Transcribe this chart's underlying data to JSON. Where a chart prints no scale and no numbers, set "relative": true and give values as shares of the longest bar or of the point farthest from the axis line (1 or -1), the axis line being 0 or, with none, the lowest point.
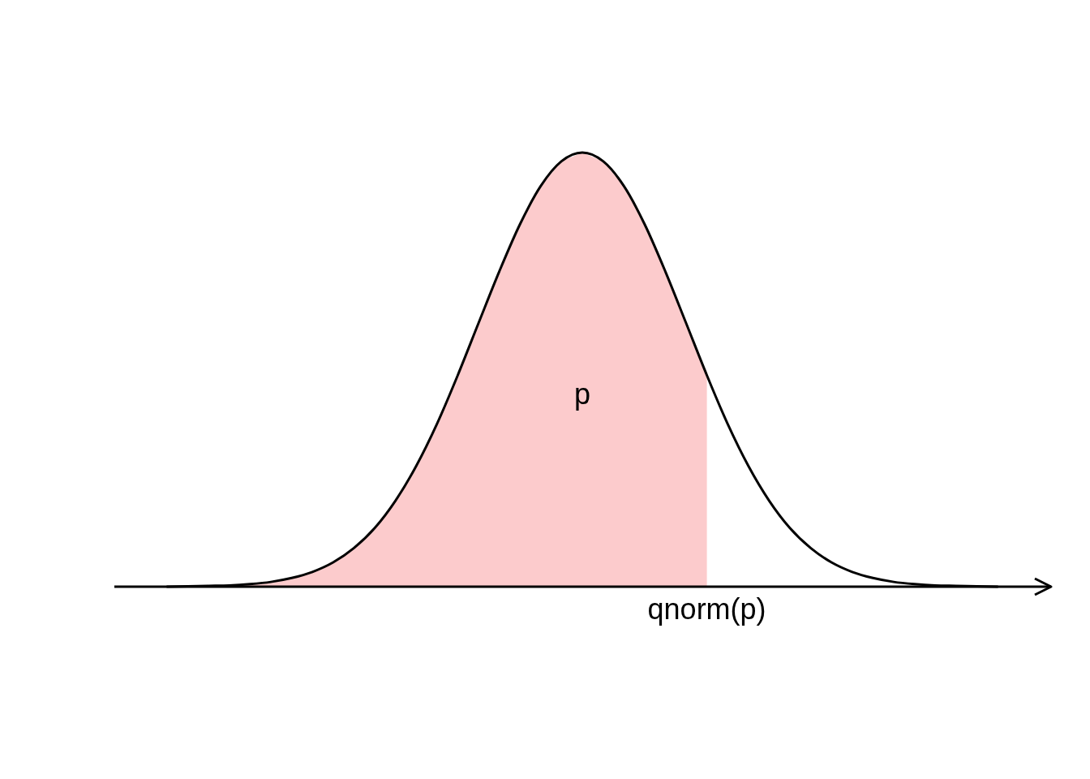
{
  "chart_data": {
    "type": "line",
    "relative": true,
    "categories": [
      null,
      null,
      null,
      null,
      null,
      null,
      null,
      null,
      null,
      null,
      null,
      null,
      null,
      null,
      null,
      null,
      null,
      null,
      null,
      null,
      null,
      null,
      null,
      null,
      null,
      null,
      null,
      null,
      null,
      null,
      null,
      null,
      null,
      null,
      null,
      null,
      null,
      null,
      null,
      null,
      null
    ],
    "series": [
      {
        "type": "area",
        "color": "#fccbcc",
        "values": [
          0.0,
          0.001,
          0.002,
          0.003,
          0.006,
          0.011,
          0.02,
          0.034,
          0.056,
          0.089,
          0.135,
          0.198,
          0.278,
          0.375,
          0.487,
          0.607,
          0.726,
          0.835,
          0.923,
          0.98,
          1.0,
          0.98,
          0.923,
          0.835,
          0.726,
          0.607,
          0.487,
          null,
          null,
          null,
          null,
          null,
          null,
          null,
          null,
          null,
          null,
          null,
          null,
          null,
          null
        ]
      },
      {
        "color": "#000000",
        "values": [
          0.0,
          0.001,
          0.002,
          0.003,
          0.006,
          0.011,
          0.02,
          0.034,
          0.056,
          0.089,
          0.135,
          0.198,
          0.278,
          0.375,
          0.487,
          0.607,
          0.726,
          0.835,
          0.923,
          0.98,
          1.0,
          0.98,
          0.923,
          0.835,
          0.726,
          0.607,
          0.487,
          0.375,
          0.278,
          0.198,
          0.135,
          0.089,
          0.056,
          0.034,
          0.02,
          0.011,
          0.006,
          0.003,
          0.002,
          0.001,
          0.0
        ]
      }
    ],
    "annotations": [
      "p",
      "qnorm(p)"
    ]
  }
}
